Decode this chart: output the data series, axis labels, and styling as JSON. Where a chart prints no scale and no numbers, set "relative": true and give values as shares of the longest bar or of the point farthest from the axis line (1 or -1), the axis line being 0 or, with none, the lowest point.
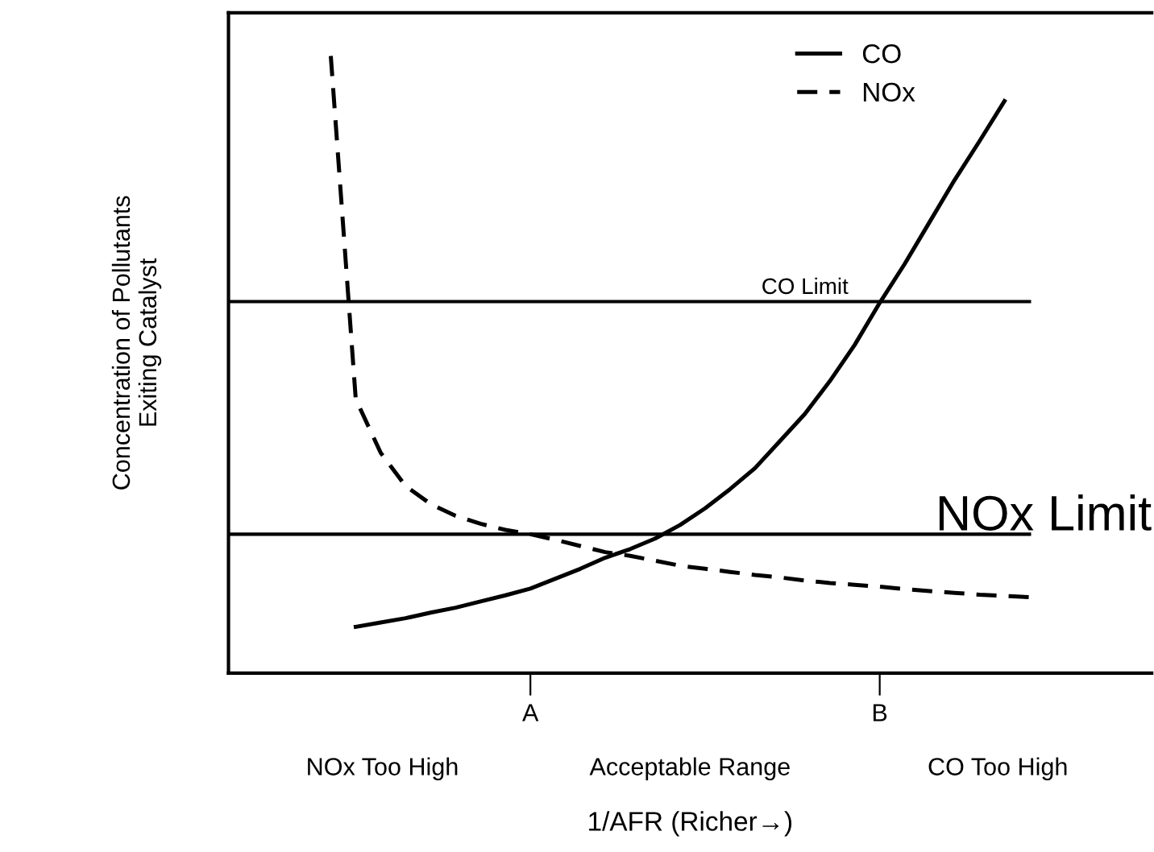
{
  "chart_data": {
    "type": "line",
    "relative": true,
    "xlabel": "1/AFR (Richer→)",
    "ylabel": "Concentration of Pollutants\nExiting Catalyst",
    "categories": [
      null,
      null,
      null,
      null,
      null,
      null,
      null,
      null,
      null,
      null,
      null,
      null,
      "A",
      null,
      null,
      null,
      null,
      null,
      null,
      null,
      null,
      null,
      null,
      null,
      null,
      null,
      "B",
      null,
      null,
      null,
      null,
      null,
      null
    ],
    "series": [
      {
        "name": "CO",
        "color": "#000000",
        "line_style": "solid",
        "values": [
          null,
          null,
          null,
          null,
          null,
          0.075,
          0.082,
          0.089,
          0.098,
          0.106,
          0.116,
          0.126,
          0.137,
          0.153,
          0.169,
          0.187,
          0.201,
          0.218,
          0.24,
          0.267,
          0.298,
          0.332,
          0.376,
          0.42,
          0.473,
          0.532,
          0.6,
          0.663,
          0.731,
          0.799,
          0.862,
          0.927,
          null
        ]
      },
      {
        "name": "NOx",
        "color": "#000000",
        "line_style": "dashed",
        "values": [
          null,
          null,
          null,
          null,
          1.0,
          0.444,
          0.357,
          0.303,
          0.274,
          0.255,
          0.242,
          0.232,
          0.225,
          0.216,
          0.206,
          0.196,
          0.19,
          0.182,
          0.174,
          0.169,
          0.164,
          0.159,
          0.155,
          0.15,
          0.146,
          0.143,
          0.14,
          0.136,
          0.133,
          0.13,
          0.127,
          0.125,
          0.123
        ]
      }
    ],
    "ref_lines": [
      {
        "axis": "y",
        "value": 0.602,
        "label": "CO Limit",
        "color": "#000000"
      },
      {
        "axis": "y",
        "value": 0.225,
        "label": "NOx Limit",
        "color": "#000000"
      }
    ],
    "annotations": [
      "NOx Too High",
      "Acceptable Range",
      "CO Too High"
    ],
    "legend": "top",
    "grid": false,
    "marker": "none"
  }
}
